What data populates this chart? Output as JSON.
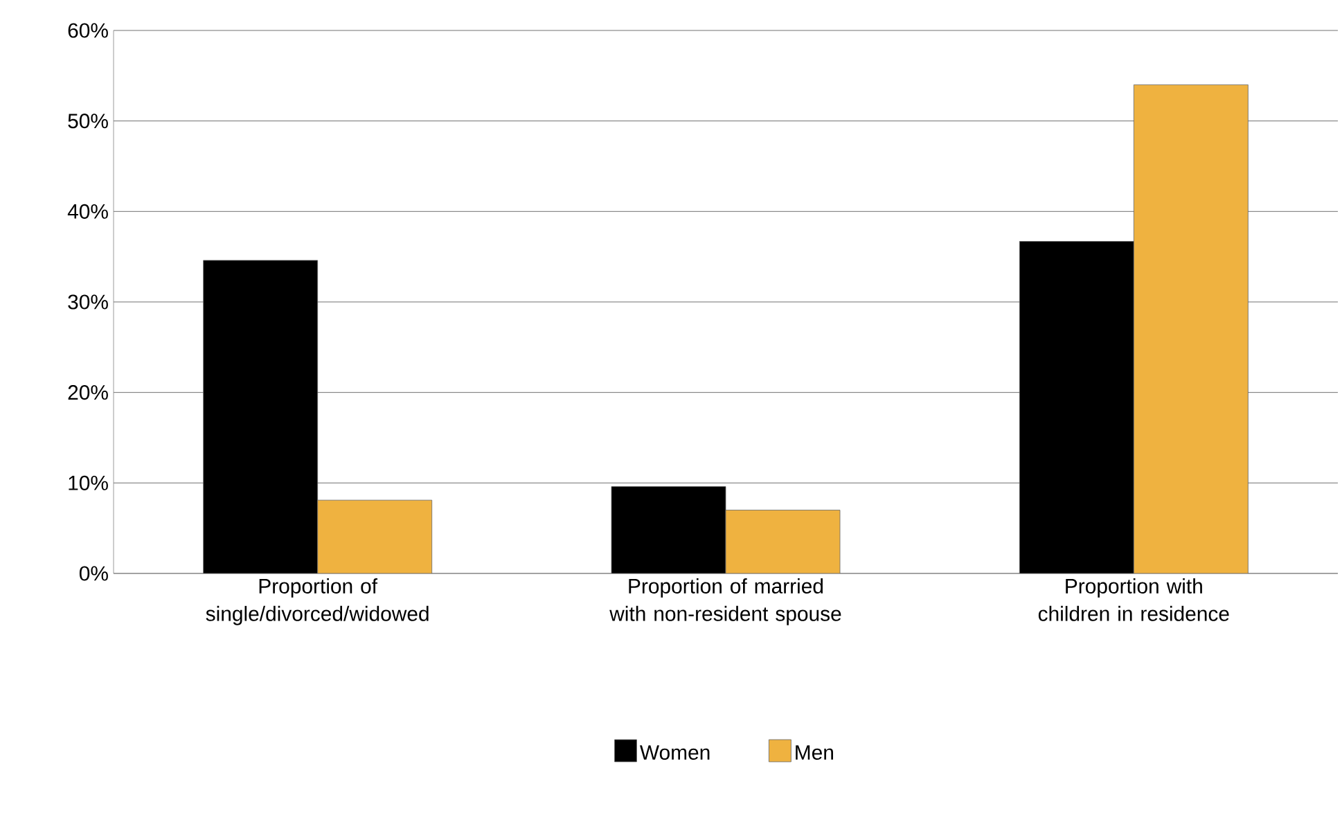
{
  "chart_data": {
    "type": "bar",
    "categories": [
      "Proportion of single/divorced/widowed",
      "Proportion of married with non-resident spouse",
      "Proportion with children in residence"
    ],
    "series": [
      {
        "name": "Women",
        "color": "#000000",
        "values": [
          34.6,
          9.6,
          36.7
        ]
      },
      {
        "name": "Men",
        "color": "#efb240",
        "values": [
          8.1,
          7.0,
          54.0
        ]
      }
    ],
    "ylim": [
      0,
      60
    ],
    "yticks": [
      {
        "value": 0,
        "label": "0%"
      },
      {
        "value": 10,
        "label": "10%"
      },
      {
        "value": 20,
        "label": "20%"
      },
      {
        "value": 30,
        "label": "30%"
      },
      {
        "value": 40,
        "label": "40%"
      },
      {
        "value": 50,
        "label": "50%"
      },
      {
        "value": 60,
        "label": "60%"
      }
    ],
    "grid": "y",
    "legend": "bottom"
  }
}
